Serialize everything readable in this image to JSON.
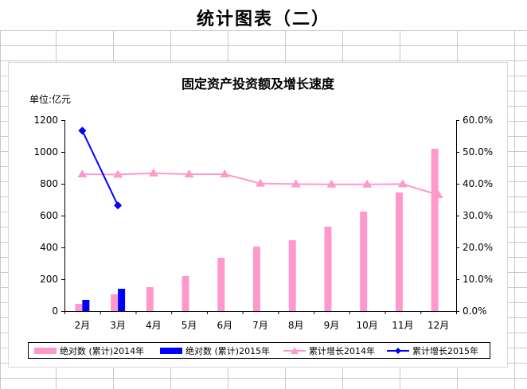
{
  "page": {
    "title": "统计图表（二）"
  },
  "chart_data": {
    "type": "bar",
    "title": "固定资产投资额及增长速度",
    "unit_label": "单位:亿元",
    "categories": [
      "2月",
      "3月",
      "4月",
      "5月",
      "6月",
      "7月",
      "8月",
      "9月",
      "10月",
      "11月",
      "12月"
    ],
    "y_left": {
      "min": 0,
      "max": 1200,
      "ticks": [
        "0",
        "200",
        "400",
        "600",
        "800",
        "1000",
        "1200"
      ]
    },
    "y_right": {
      "min": 0,
      "max": 60,
      "ticks": [
        "0.0%",
        "10.0%",
        "20.0%",
        "30.0%",
        "40.0%",
        "50.0%",
        "60.0%"
      ]
    },
    "grid": false,
    "legend_position": "bottom",
    "series": [
      {
        "name": "绝对数 (累计)2014年",
        "kind": "bar",
        "axis": "left",
        "color": "#ff99cc",
        "values": [
          45,
          105,
          150,
          220,
          335,
          405,
          445,
          530,
          625,
          745,
          1020
        ]
      },
      {
        "name": "绝对数 (累计)2015年",
        "kind": "bar",
        "axis": "left",
        "color": "#0000ff",
        "values": [
          70,
          140,
          null,
          null,
          null,
          null,
          null,
          null,
          null,
          null,
          null
        ]
      },
      {
        "name": "累计增长2014年",
        "kind": "line",
        "marker": "triangle",
        "axis": "right",
        "color": "#ff99cc",
        "values": [
          43.0,
          42.9,
          43.3,
          43.0,
          43.0,
          40.1,
          39.9,
          39.8,
          39.8,
          39.9,
          36.5
        ]
      },
      {
        "name": "累计增长2015年",
        "kind": "line",
        "marker": "diamond",
        "axis": "right",
        "color": "#0000ff",
        "values": [
          56.7,
          33.2,
          null,
          null,
          null,
          null,
          null,
          null,
          null,
          null,
          null
        ]
      }
    ]
  }
}
